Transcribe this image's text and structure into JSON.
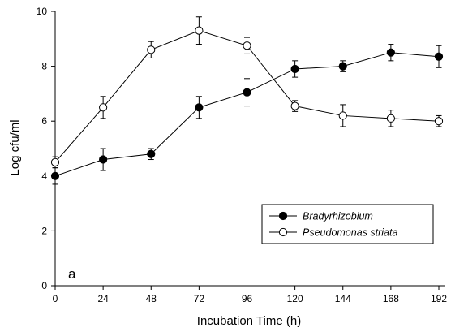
{
  "chart_data": {
    "type": "line",
    "xlabel": "Incubation Time (h)",
    "ylabel": "Log cfu/ml",
    "panel_label": "a",
    "x": [
      0,
      24,
      48,
      72,
      96,
      120,
      144,
      168,
      192
    ],
    "xticks": [
      "0",
      "24",
      "48",
      "72",
      "96",
      "120",
      "144",
      "168",
      "192"
    ],
    "yticks": [
      "0",
      "2",
      "4",
      "6",
      "8",
      "10"
    ],
    "xlim": [
      0,
      192
    ],
    "ylim": [
      0,
      10
    ],
    "grid": false,
    "legend_position": "lower-right",
    "series": [
      {
        "name": "Bradyrhizobium",
        "marker": "filled-circle",
        "color": "#000000",
        "values": [
          4.0,
          4.6,
          4.8,
          6.5,
          7.05,
          7.9,
          8.0,
          8.5,
          8.35
        ],
        "errors": [
          0.3,
          0.4,
          0.2,
          0.4,
          0.5,
          0.3,
          0.2,
          0.3,
          0.4
        ]
      },
      {
        "name": "Pseudomonas striata",
        "marker": "open-circle",
        "color": "#000000",
        "values": [
          4.5,
          6.5,
          8.6,
          9.3,
          8.75,
          6.55,
          6.2,
          6.1,
          6.0
        ],
        "errors": [
          0.2,
          0.4,
          0.3,
          0.5,
          0.3,
          0.2,
          0.4,
          0.3,
          0.2
        ]
      }
    ]
  }
}
